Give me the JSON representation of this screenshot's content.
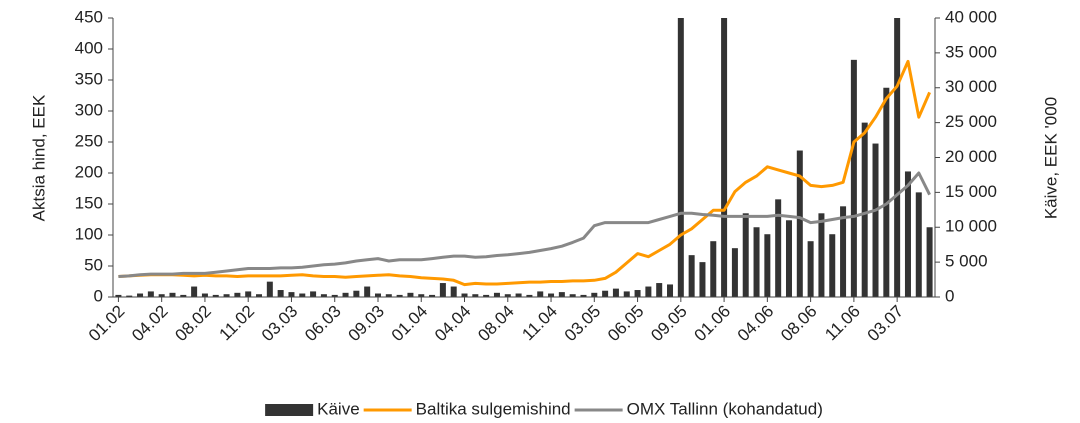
{
  "chart_data": {
    "type": "combo",
    "y_label": "Aktsia hind, EEK",
    "y2_label": "Käive, EEK '000",
    "categories": [
      "01.02",
      null,
      null,
      null,
      "04.02",
      null,
      null,
      null,
      "08.02",
      null,
      null,
      null,
      "11.02",
      null,
      null,
      null,
      "03.03",
      null,
      null,
      null,
      "06.03",
      null,
      null,
      null,
      "09.03",
      null,
      null,
      null,
      "01.04",
      null,
      null,
      null,
      "04.04",
      null,
      null,
      null,
      "08.04",
      null,
      null,
      null,
      "11.04",
      null,
      null,
      null,
      "03.05",
      null,
      null,
      null,
      "06.05",
      null,
      null,
      null,
      "09.05",
      null,
      null,
      null,
      "01.06",
      null,
      null,
      null,
      "04.06",
      null,
      null,
      null,
      "08.06",
      null,
      null,
      null,
      "11.06",
      null,
      null,
      null,
      "03.07",
      null,
      null,
      null
    ],
    "ylim": [
      0,
      450
    ],
    "yticks": [
      0,
      50,
      100,
      150,
      200,
      250,
      300,
      350,
      400,
      450
    ],
    "y2lim": [
      0,
      40000
    ],
    "y2ticks": [
      0,
      {
        "value": 5000,
        "label": "5 000"
      },
      {
        "value": 10000,
        "label": "10 000"
      },
      {
        "value": 15000,
        "label": "15 000"
      },
      {
        "value": 20000,
        "label": "20 000"
      },
      {
        "value": 25000,
        "label": "25 000"
      },
      {
        "value": 30000,
        "label": "30 000"
      },
      {
        "value": 35000,
        "label": "35 000"
      },
      {
        "value": 40000,
        "label": "40 000"
      }
    ],
    "grid": false,
    "legend": "bottom",
    "series": [
      {
        "name": "Käive",
        "type": "bar",
        "axis": "y2",
        "color": "#333333",
        "values": [
          300,
          200,
          500,
          800,
          400,
          600,
          300,
          1500,
          500,
          300,
          400,
          600,
          800,
          400,
          2200,
          1000,
          700,
          500,
          800,
          400,
          300,
          600,
          900,
          1500,
          500,
          400,
          300,
          600,
          400,
          300,
          2000,
          1500,
          500,
          400,
          300,
          600,
          400,
          500,
          300,
          800,
          500,
          700,
          400,
          300,
          600,
          900,
          1200,
          800,
          1000,
          1500,
          2000,
          1800,
          40000,
          6000,
          5000,
          8000,
          40000,
          7000,
          12000,
          10000,
          9000,
          14000,
          11000,
          21000,
          8000,
          12000,
          9000,
          13000,
          34000,
          25000,
          22000,
          30000,
          40000,
          18000,
          15000,
          10000
        ]
      },
      {
        "name": "Baltika sulgemishind",
        "type": "line",
        "color": "#ff9900",
        "values": [
          33,
          34,
          35,
          36,
          36,
          36,
          35,
          34,
          35,
          34,
          34,
          33,
          34,
          34,
          34,
          34,
          35,
          36,
          34,
          33,
          33,
          32,
          33,
          34,
          35,
          36,
          34,
          33,
          31,
          30,
          29,
          27,
          20,
          22,
          21,
          21,
          22,
          23,
          24,
          24,
          25,
          25,
          26,
          26,
          27,
          30,
          40,
          55,
          70,
          65,
          75,
          85,
          100,
          110,
          125,
          140,
          140,
          170,
          185,
          195,
          210,
          205,
          200,
          195,
          180,
          178,
          180,
          185,
          250,
          265,
          290,
          320,
          340,
          380,
          290,
          330
        ]
      },
      {
        "name": "OMX Tallinn (kohandatud)",
        "type": "line",
        "color": "#888888",
        "values": [
          33,
          34,
          36,
          37,
          37,
          37,
          38,
          38,
          38,
          40,
          42,
          44,
          46,
          46,
          46,
          47,
          47,
          48,
          50,
          52,
          53,
          55,
          58,
          60,
          62,
          58,
          60,
          60,
          60,
          62,
          64,
          66,
          66,
          64,
          65,
          67,
          68,
          70,
          72,
          75,
          78,
          82,
          88,
          95,
          115,
          120,
          120,
          120,
          120,
          120,
          125,
          130,
          135,
          135,
          133,
          132,
          130,
          130,
          130,
          130,
          130,
          132,
          130,
          128,
          120,
          122,
          125,
          128,
          130,
          135,
          140,
          150,
          165,
          180,
          200,
          165
        ]
      }
    ]
  }
}
